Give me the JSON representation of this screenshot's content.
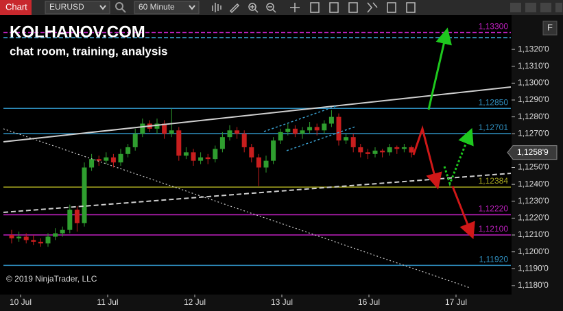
{
  "toolbar": {
    "tab": "Chart",
    "instrument": "EURUSD",
    "interval": "60 Minute",
    "panel_button": "F"
  },
  "chart_data": {
    "type": "candlestick",
    "title": "KOLHANOV.COM",
    "subtitle": "chat room, training, analysis",
    "footer": "© 2019 NinjaTrader, LLC",
    "x_labels": [
      "10 Jul",
      "11 Jul",
      "12 Jul",
      "13 Jul",
      "16 Jul",
      "17 Jul"
    ],
    "up_color": "#2f9e2f",
    "down_color": "#c81e1e",
    "open": [
      1.121,
      1.1208,
      1.1209,
      1.1207,
      1.1206,
      1.1205,
      1.1209,
      1.1211,
      1.1213,
      1.1225,
      1.1217,
      1.125,
      1.1255,
      1.1254,
      1.1256,
      1.1253,
      1.1258,
      1.1262,
      1.127,
      1.1276,
      1.1273,
      1.1276,
      1.127,
      1.1272,
      1.1257,
      1.1259,
      1.1254,
      1.1256,
      1.1255,
      1.1261,
      1.1268,
      1.1272,
      1.127,
      1.1262,
      1.1256,
      1.125,
      1.1254,
      1.1266,
      1.1271,
      1.1273,
      1.127,
      1.1272,
      1.1274,
      1.1272,
      1.1276,
      1.128,
      1.1266,
      1.1268,
      1.1262,
      1.1259,
      1.1258,
      1.126,
      1.1259,
      1.1262,
      1.1261,
      1.1262
    ],
    "high": [
      1.1213,
      1.1212,
      1.1211,
      1.121,
      1.1208,
      1.1211,
      1.1214,
      1.1215,
      1.1228,
      1.1227,
      1.1253,
      1.1258,
      1.1257,
      1.1259,
      1.1258,
      1.1261,
      1.1264,
      1.1273,
      1.1279,
      1.1278,
      1.1279,
      1.1278,
      1.1285,
      1.1274,
      1.1262,
      1.1261,
      1.1259,
      1.1258,
      1.1263,
      1.1271,
      1.1275,
      1.1274,
      1.1272,
      1.1264,
      1.1258,
      1.1257,
      1.1268,
      1.1273,
      1.1276,
      1.1275,
      1.1274,
      1.1277,
      1.1276,
      1.1278,
      1.1284,
      1.1282,
      1.127,
      1.127,
      1.1264,
      1.1261,
      1.1262,
      1.1261,
      1.1264,
      1.1263,
      1.1264,
      1.1263
    ],
    "low": [
      1.1205,
      1.1206,
      1.1205,
      1.1204,
      1.1203,
      1.1203,
      1.1207,
      1.1209,
      1.1211,
      1.1212,
      1.1215,
      1.1248,
      1.1251,
      1.1252,
      1.125,
      1.1251,
      1.1256,
      1.126,
      1.1268,
      1.1271,
      1.127,
      1.1267,
      1.1268,
      1.1254,
      1.1255,
      1.1251,
      1.1252,
      1.1252,
      1.1253,
      1.1259,
      1.1266,
      1.1267,
      1.1259,
      1.1253,
      1.1239,
      1.1247,
      1.1252,
      1.1264,
      1.1269,
      1.1268,
      1.1267,
      1.127,
      1.1269,
      1.127,
      1.1274,
      1.1263,
      1.1264,
      1.1259,
      1.1256,
      1.1255,
      1.1256,
      1.1256,
      1.1257,
      1.1258,
      1.1259,
      1.1256
    ],
    "close": [
      1.1208,
      1.1209,
      1.1207,
      1.1206,
      1.1205,
      1.1209,
      1.1211,
      1.1213,
      1.1225,
      1.1217,
      1.125,
      1.1255,
      1.1254,
      1.1256,
      1.1253,
      1.1258,
      1.1262,
      1.127,
      1.1276,
      1.1273,
      1.1276,
      1.127,
      1.1272,
      1.1257,
      1.1259,
      1.1254,
      1.1256,
      1.1255,
      1.1261,
      1.1268,
      1.1272,
      1.127,
      1.1262,
      1.1256,
      1.125,
      1.1254,
      1.1266,
      1.1271,
      1.1273,
      1.127,
      1.1272,
      1.1274,
      1.1272,
      1.1276,
      1.128,
      1.1266,
      1.1268,
      1.1262,
      1.1259,
      1.1258,
      1.126,
      1.1259,
      1.1262,
      1.1261,
      1.1262,
      1.12589
    ],
    "ylim": [
      1.11755,
      1.13379
    ],
    "yticks": [
      {
        "value": 1.118,
        "label": "1,1180'0"
      },
      {
        "value": 1.119,
        "label": "1,1190'0"
      },
      {
        "value": 1.12,
        "label": "1,1200'0"
      },
      {
        "value": 1.121,
        "label": "1,1210'0"
      },
      {
        "value": 1.122,
        "label": "1,1220'0"
      },
      {
        "value": 1.123,
        "label": "1,1230'0"
      },
      {
        "value": 1.124,
        "label": "1,1240'0"
      },
      {
        "value": 1.125,
        "label": "1,1250'0"
      },
      {
        "value": 1.126,
        "label": "1,1260'0"
      },
      {
        "value": 1.127,
        "label": "1,1270'0"
      },
      {
        "value": 1.128,
        "label": "1,1280'0"
      },
      {
        "value": 1.129,
        "label": "1,1290'0"
      },
      {
        "value": 1.13,
        "label": "1,1300'0"
      },
      {
        "value": 1.131,
        "label": "1,1310'0"
      },
      {
        "value": 1.132,
        "label": "1,1320'0"
      }
    ],
    "last_price": {
      "value": 1.12589,
      "label": "1,1258'9"
    },
    "levels": [
      {
        "value": 1.133,
        "label": "1,13300",
        "color": "#c020c0",
        "dashed": true
      },
      {
        "value": 1.1327,
        "color": "#3aa0d0",
        "dashed": true
      },
      {
        "value": 1.1285,
        "label": "1,12850",
        "color": "#2f8fbf",
        "dashed": false
      },
      {
        "value": 1.12701,
        "label": "1,12701",
        "color": "#2f8fbf",
        "dashed": false
      },
      {
        "value": 1.12384,
        "label": "1,12384",
        "color": "#a8a820",
        "dashed": false
      },
      {
        "value": 1.1222,
        "label": "1,12220",
        "color": "#c020c0",
        "dashed": false
      },
      {
        "value": 1.121,
        "label": "1,12100",
        "color": "#c020c0",
        "dashed": false
      },
      {
        "value": 1.1192,
        "label": "1,11920",
        "color": "#2f8fbf",
        "dashed": false
      }
    ]
  }
}
